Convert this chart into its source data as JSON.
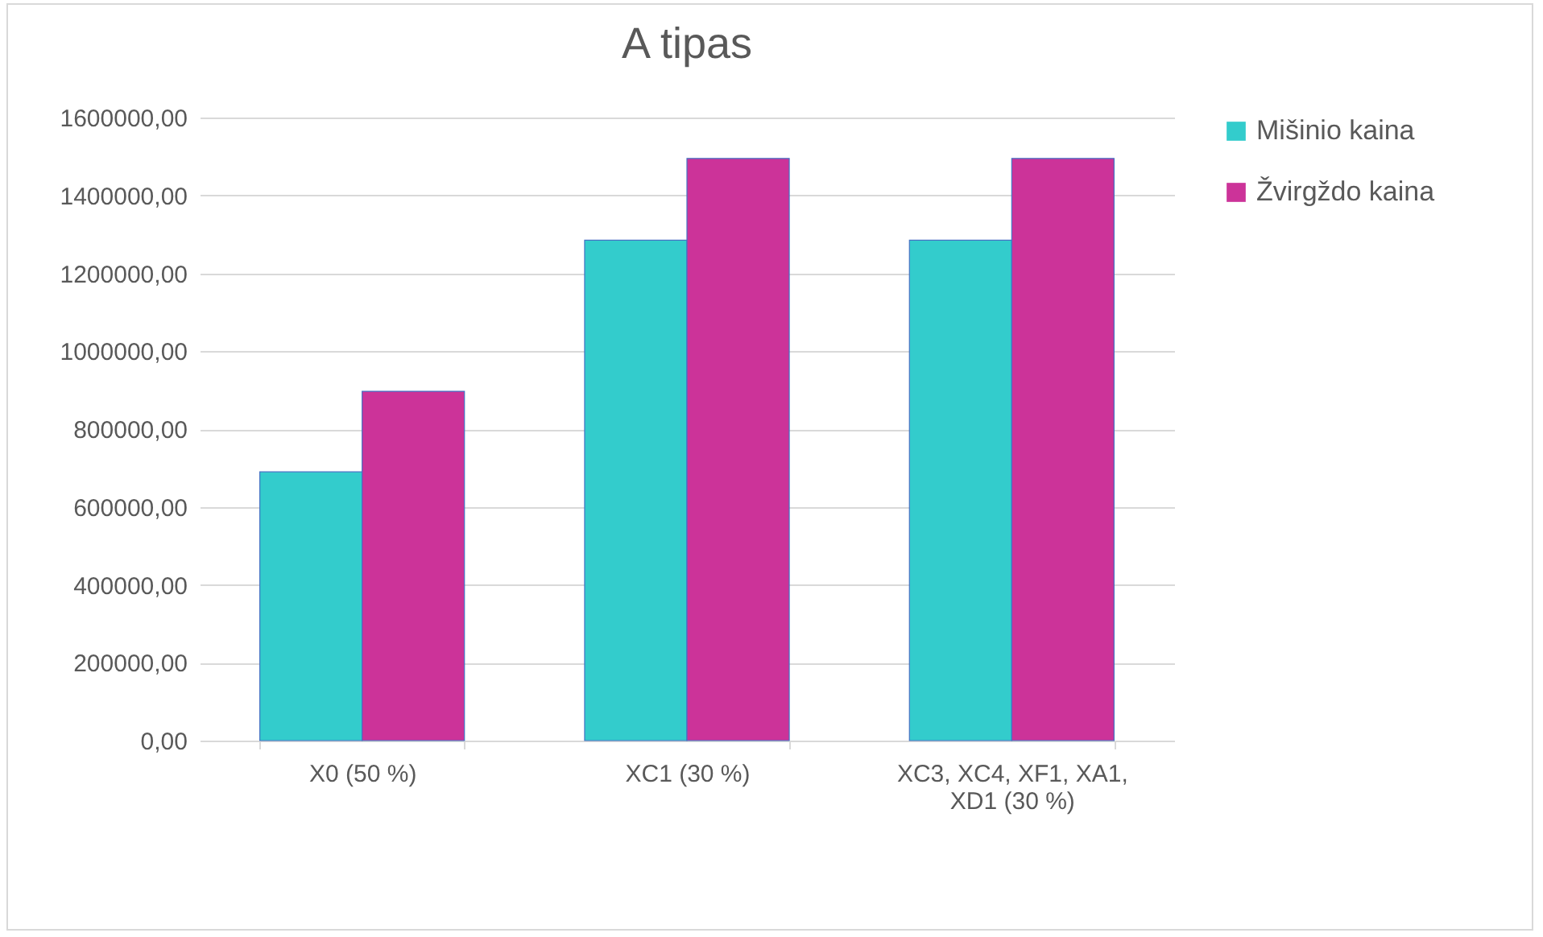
{
  "chart_data": {
    "type": "bar",
    "title": "A tipas",
    "categories": [
      "X0 (50 %)",
      "XC1 (30 %)",
      "XC3, XC4, XF1, XA1, XD1 (30 %)"
    ],
    "series": [
      {
        "name": "Mišinio kaina",
        "color": "#33cccc",
        "values": [
          690000,
          1285000,
          1285000
        ]
      },
      {
        "name": "Žvirgždo kaina",
        "color": "#cc3399",
        "values": [
          897000,
          1495000,
          1495000
        ]
      }
    ],
    "ylim": [
      0,
      1600000
    ],
    "yticks": [
      {
        "value": 0,
        "label": "0,00"
      },
      {
        "value": 200000,
        "label": "200000,00"
      },
      {
        "value": 400000,
        "label": "400000,00"
      },
      {
        "value": 600000,
        "label": "600000,00"
      },
      {
        "value": 800000,
        "label": "800000,00"
      },
      {
        "value": 1000000,
        "label": "1000000,00"
      },
      {
        "value": 1200000,
        "label": "1200000,00"
      },
      {
        "value": 1400000,
        "label": "1400000,00"
      },
      {
        "value": 1600000,
        "label": "1600000,00"
      }
    ],
    "grid": "y",
    "legend": "right"
  }
}
